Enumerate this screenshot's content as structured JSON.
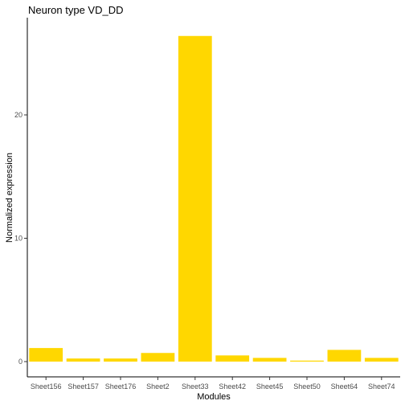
{
  "chart_data": {
    "type": "bar",
    "title": "Neuron type VD_DD",
    "xlabel": "Modules",
    "ylabel": "Normalized expression",
    "categories": [
      "Sheet156",
      "Sheet157",
      "Sheet176",
      "Sheet2",
      "Sheet33",
      "Sheet42",
      "Sheet45",
      "Sheet50",
      "Sheet64",
      "Sheet74"
    ],
    "values": [
      1.1,
      0.25,
      0.25,
      0.7,
      26.4,
      0.5,
      0.3,
      0.08,
      0.95,
      0.3
    ],
    "ylim": [
      0,
      26.4
    ],
    "yticks": [
      0,
      10,
      20
    ],
    "bar_color": "#FFD700",
    "grid": false,
    "legend": "none"
  }
}
